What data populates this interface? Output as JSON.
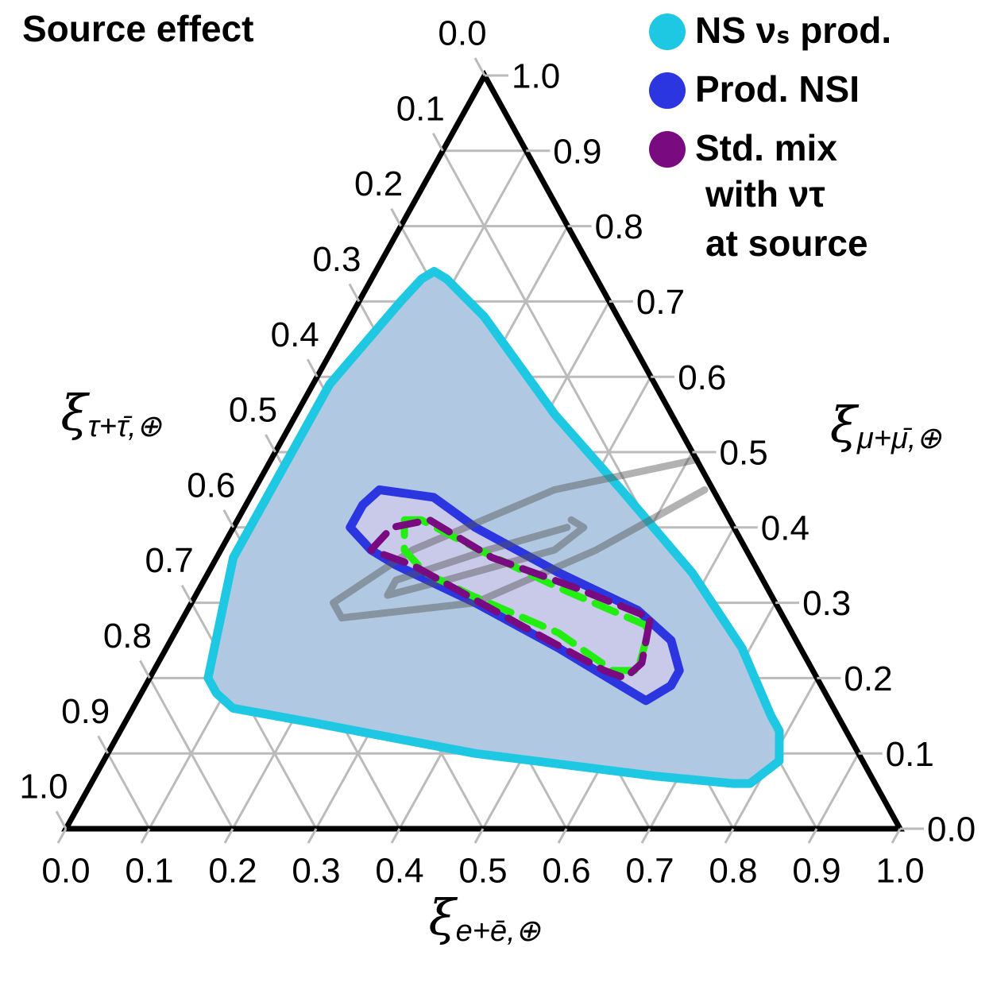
{
  "chart_data": {
    "type": "ternary",
    "title": "Source effect",
    "xlabel": {
      "symbol": "ξ",
      "subscript": "e+ē,⊕"
    },
    "rlabel": {
      "symbol": "ξ",
      "subscript": "μ+μ̄,⊕"
    },
    "llabel": {
      "symbol": "ξ",
      "subscript": "τ+τ̄,⊕"
    },
    "ticks": [
      {
        "value": 0,
        "label": "0.0"
      },
      {
        "value": 0.1,
        "label": "0.1"
      },
      {
        "value": 0.2,
        "label": "0.2"
      },
      {
        "value": 0.3,
        "label": "0.3"
      },
      {
        "value": 0.4,
        "label": "0.4"
      },
      {
        "value": 0.5,
        "label": "0.5"
      },
      {
        "value": 0.6,
        "label": "0.6"
      },
      {
        "value": 0.7,
        "label": "0.7"
      },
      {
        "value": 0.8,
        "label": "0.8"
      },
      {
        "value": 0.9,
        "label": "0.9"
      },
      {
        "value": 1,
        "label": "1.0"
      }
    ],
    "grid": true,
    "legend_extra": [
      "with ντ",
      "at source"
    ],
    "series": [
      {
        "name": "NS νₛ prod.",
        "color": "#1ec8e3",
        "fill": "#b0c8e2",
        "closed": true,
        "e": [
          0.07,
          0.09,
          0.16,
          0.31,
          0.44,
          0.58,
          0.69,
          0.77,
          0.79,
          0.81,
          0.79,
          0.77,
          0.67,
          0.44,
          0.23,
          0.12,
          0.09,
          0.07,
          0.02,
          0.02,
          0.02,
          0.05,
          0.06
        ],
        "mu": [
          0.74,
          0.73,
          0.68,
          0.55,
          0.45,
          0.34,
          0.24,
          0.15,
          0.13,
          0.09,
          0.06,
          0.06,
          0.07,
          0.1,
          0.14,
          0.16,
          0.18,
          0.2,
          0.36,
          0.47,
          0.59,
          0.7,
          0.73
        ]
      },
      {
        "name": "Prod. NSI",
        "color": "#2b35e0",
        "fill": "#c9c9ea",
        "closed": true,
        "e": [
          0.14,
          0.15,
          0.22,
          0.29,
          0.42,
          0.54,
          0.6,
          0.63,
          0.63,
          0.61,
          0.57,
          0.47,
          0.34,
          0.22,
          0.18,
          0.14
        ],
        "mu": [
          0.43,
          0.45,
          0.44,
          0.4,
          0.34,
          0.29,
          0.25,
          0.21,
          0.19,
          0.17,
          0.19,
          0.24,
          0.3,
          0.35,
          0.37,
          0.4
        ]
      },
      {
        "color": "#555555",
        "closed": false,
        "e": [
          0.51,
          0.36,
          0.23,
          0.17,
          0.19,
          0.34,
          0.45,
          0.54
        ],
        "mu": [
          0.49,
          0.45,
          0.37,
          0.3,
          0.28,
          0.3,
          0.37,
          0.45
        ]
      },
      {
        "color": "#555555",
        "closed": false,
        "e": [
          0.4,
          0.42,
          0.4,
          0.29,
          0.23,
          0.23,
          0.32,
          0.4
        ],
        "mu": [
          0.41,
          0.4,
          0.37,
          0.33,
          0.31,
          0.33,
          0.37,
          0.4
        ]
      },
      {
        "color": "#22ee11",
        "closed": true,
        "dash": true,
        "e": [
          0.2,
          0.22,
          0.31,
          0.43,
          0.56,
          0.57,
          0.58,
          0.55,
          0.46,
          0.33,
          0.26,
          0.22
        ],
        "mu": [
          0.41,
          0.41,
          0.37,
          0.32,
          0.27,
          0.25,
          0.21,
          0.21,
          0.26,
          0.31,
          0.34,
          0.37
        ]
      },
      {
        "name": "Std. mix",
        "color": "#7a0a80",
        "closed": true,
        "dash": true,
        "e": [
          0.18,
          0.19,
          0.23,
          0.33,
          0.45,
          0.56,
          0.58,
          0.57,
          0.54,
          0.41,
          0.24
        ],
        "mu": [
          0.37,
          0.4,
          0.41,
          0.36,
          0.32,
          0.28,
          0.22,
          0.2,
          0.21,
          0.27,
          0.35
        ]
      }
    ]
  }
}
